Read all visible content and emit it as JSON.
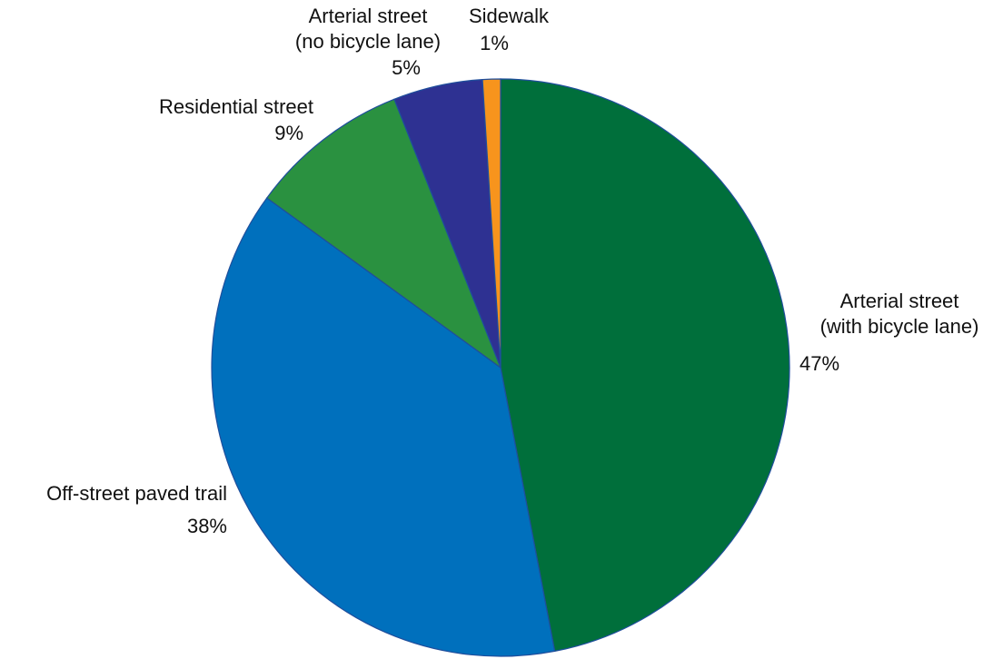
{
  "chart_data": {
    "type": "pie",
    "categories": [
      "Arterial street\n(with bicycle lane)",
      "Off-street paved trail",
      "Residential street",
      "Arterial street\n(no bicycle lane)",
      "Sidewalk"
    ],
    "values": [
      47,
      38,
      9,
      5,
      1
    ],
    "value_labels": [
      "47%",
      "38%",
      "9%",
      "5%",
      "1%"
    ],
    "colors": [
      "#006f3b",
      "#0070bd",
      "#2a9140",
      "#2e3192",
      "#f7941d"
    ]
  }
}
